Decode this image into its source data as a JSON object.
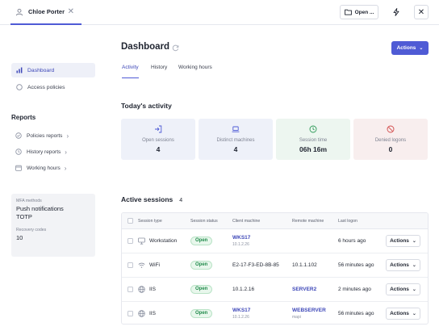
{
  "topbar": {
    "tab_label": "Chloe Porter",
    "open_label": "Open ..."
  },
  "sidebar": {
    "items": [
      {
        "label": "Dashboard",
        "icon": "bar-chart-icon",
        "active": true
      },
      {
        "label": "Access policies",
        "icon": "circle-icon",
        "active": false
      }
    ],
    "reports_heading": "Reports",
    "reports": [
      {
        "label": "Policies reports",
        "icon": "shield-check-icon"
      },
      {
        "label": "History reports",
        "icon": "history-icon"
      },
      {
        "label": "Working hours",
        "icon": "calendar-icon"
      }
    ],
    "mfa": {
      "methods_caption": "MFA methods",
      "methods": [
        "Push notifications",
        "TOTP"
      ],
      "codes_caption": "Recovery codes",
      "codes_value": "10"
    }
  },
  "main": {
    "title": "Dashboard",
    "actions_label": "Actions",
    "tabs": [
      "Activity",
      "History",
      "Working hours"
    ],
    "active_tab": "Activity",
    "today_heading": "Today's activity",
    "stats": [
      {
        "label": "Open sessions",
        "value": "4",
        "icon": "login-icon",
        "bg": "#eef1f9",
        "color": "#4f5bd5"
      },
      {
        "label": "Distinct machines",
        "value": "4",
        "icon": "laptop-icon",
        "bg": "#eef1f9",
        "color": "#4f5bd5"
      },
      {
        "label": "Session time",
        "value": "06h 16m",
        "icon": "clock-icon",
        "bg": "#edf6f0",
        "color": "#2c9a56"
      },
      {
        "label": "Denied logons",
        "value": "0",
        "icon": "ban-icon",
        "bg": "#f8eeee",
        "color": "#d24b4b"
      }
    ],
    "sessions_heading": "Active sessions",
    "sessions_count": "4",
    "columns": [
      "Session type",
      "Session status",
      "Client machine",
      "Remote machine",
      "Last logon"
    ],
    "rows": [
      {
        "type": "Workstation",
        "icon": "monitor-icon",
        "status": "Open",
        "client": "WKS17",
        "client_link": true,
        "client_sub": "10.1.2.26",
        "remote": "",
        "remote_sub": "",
        "last_logon": "6 hours ago",
        "actions": "Actions"
      },
      {
        "type": "WiFi",
        "icon": "wifi-icon",
        "status": "Open",
        "client": "E2-17-F3-ED-8B-85",
        "client_link": false,
        "client_sub": "",
        "remote": "10.1.1.102",
        "remote_link": false,
        "remote_sub": "",
        "last_logon": "56 minutes ago",
        "actions": "Actions"
      },
      {
        "type": "IIS",
        "icon": "globe-icon",
        "status": "Open",
        "client": "10.1.2.16",
        "client_link": false,
        "client_sub": "",
        "remote": "SERVER2",
        "remote_link": true,
        "remote_sub": "",
        "last_logon": "2 minutes ago",
        "actions": "Actions"
      },
      {
        "type": "IIS",
        "icon": "globe-icon",
        "status": "Open",
        "client": "WKS17",
        "client_link": true,
        "client_sub": "10.1.2.26",
        "remote": "WEBSERVER",
        "remote_link": true,
        "remote_sub": "mapi",
        "last_logon": "56 minutes ago",
        "actions": "Actions"
      }
    ]
  }
}
